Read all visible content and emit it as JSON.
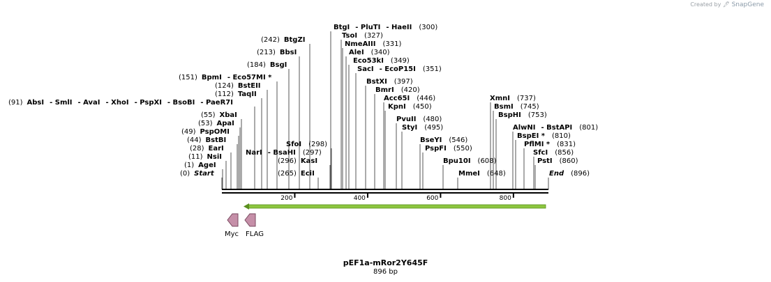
{
  "credit": {
    "prefix": "Created by",
    "brand": "SnapGene"
  },
  "title": "pEF1a-mRor2Y645F",
  "length_label": "896 bp",
  "sequence_length": 896,
  "ruler_ticks": [
    "200",
    "400",
    "600",
    "800"
  ],
  "features": [
    {
      "name": "Myc"
    },
    {
      "name": "FLAG"
    }
  ],
  "colors": {
    "orf_arrow": "#8cc63f",
    "orf_arrow_dark": "#5a8f1f",
    "feature_fill": "#c58fa8",
    "feature_stroke": "#7a4a60",
    "backbone": "#000000",
    "site_line": "#555555"
  },
  "sites": [
    {
      "pos": "(0)",
      "parts": [
        {
          "name": "Start",
          "italic": true
        }
      ],
      "bp": 0
    },
    {
      "pos": "(1)",
      "parts": [
        {
          "name": "AgeI"
        }
      ],
      "bp": 1
    },
    {
      "pos": "(11)",
      "parts": [
        {
          "name": "NsiI"
        }
      ],
      "bp": 11
    },
    {
      "pos": "(28)",
      "parts": [
        {
          "name": "EarI"
        }
      ],
      "bp": 28
    },
    {
      "pos": "(44)",
      "parts": [
        {
          "name": "BstBI"
        }
      ],
      "bp": 44
    },
    {
      "pos": "(49)",
      "parts": [
        {
          "name": "PspOMI"
        }
      ],
      "bp": 49
    },
    {
      "pos": "(53)",
      "parts": [
        {
          "name": "ApaI"
        }
      ],
      "bp": 53
    },
    {
      "pos": "(55)",
      "parts": [
        {
          "name": "XbaI"
        }
      ],
      "bp": 55
    },
    {
      "pos": "(91)",
      "parts": [
        {
          "name": "AbsI"
        },
        {
          "name": "SmlI"
        },
        {
          "name": "AvaI"
        },
        {
          "name": "XhoI"
        },
        {
          "name": "PspXI"
        },
        {
          "name": "BsoBI"
        },
        {
          "name": "PaeR7I"
        }
      ],
      "bp": 91
    },
    {
      "pos": "(112)",
      "parts": [
        {
          "name": "TaqII"
        }
      ],
      "bp": 112
    },
    {
      "pos": "(124)",
      "parts": [
        {
          "name": "BstEII"
        }
      ],
      "bp": 124
    },
    {
      "pos": "(151)",
      "parts": [
        {
          "name": "BpmI"
        },
        {
          "name": "Eco57MI *"
        }
      ],
      "bp": 151
    },
    {
      "pos": "(184)",
      "parts": [
        {
          "name": "BsgI"
        }
      ],
      "bp": 184
    },
    {
      "pos": "(213)",
      "parts": [
        {
          "name": "BbsI"
        }
      ],
      "bp": 213
    },
    {
      "pos": "(242)",
      "parts": [
        {
          "name": "BtgZI"
        }
      ],
      "bp": 242
    },
    {
      "pos": "(265)",
      "parts": [
        {
          "name": "EciI"
        }
      ],
      "bp": 265
    },
    {
      "pos": "(296)",
      "parts": [
        {
          "name": "KasI"
        }
      ],
      "bp": 296
    },
    {
      "pos": "(297)",
      "parts": [
        {
          "name": "NarI"
        },
        {
          "name": "BsaHI"
        }
      ],
      "bp": 297
    },
    {
      "pos": "(298)",
      "parts": [
        {
          "name": "SfoI"
        }
      ],
      "bp": 298
    },
    {
      "pos": "(300)",
      "parts": [
        {
          "name": "BtgI"
        },
        {
          "name": "PluTI"
        },
        {
          "name": "HaeII"
        }
      ],
      "bp": 300
    },
    {
      "pos": "(327)",
      "parts": [
        {
          "name": "TsoI"
        }
      ],
      "bp": 327
    },
    {
      "pos": "(331)",
      "parts": [
        {
          "name": "NmeAIII"
        }
      ],
      "bp": 331
    },
    {
      "pos": "(340)",
      "parts": [
        {
          "name": "AleI"
        }
      ],
      "bp": 340
    },
    {
      "pos": "(349)",
      "parts": [
        {
          "name": "Eco53kI"
        }
      ],
      "bp": 349
    },
    {
      "pos": "(351)",
      "parts": [
        {
          "name": "SacI"
        },
        {
          "name": "EcoP15I"
        }
      ],
      "bp": 351
    },
    {
      "pos": "(397)",
      "parts": [
        {
          "name": "BstXI"
        }
      ],
      "bp": 397
    },
    {
      "pos": "(420)",
      "parts": [
        {
          "name": "BmrI"
        }
      ],
      "bp": 420
    },
    {
      "pos": "(446)",
      "parts": [
        {
          "name": "Acc65I"
        }
      ],
      "bp": 446
    },
    {
      "pos": "(450)",
      "parts": [
        {
          "name": "KpnI"
        }
      ],
      "bp": 450
    },
    {
      "pos": "(480)",
      "parts": [
        {
          "name": "PvuII"
        }
      ],
      "bp": 480
    },
    {
      "pos": "(495)",
      "parts": [
        {
          "name": "StyI"
        }
      ],
      "bp": 495
    },
    {
      "pos": "(546)",
      "parts": [
        {
          "name": "BseYI"
        }
      ],
      "bp": 546
    },
    {
      "pos": "(550)",
      "parts": [
        {
          "name": "PspFI"
        }
      ],
      "bp": 550
    },
    {
      "pos": "(608)",
      "parts": [
        {
          "name": "Bpu10I"
        }
      ],
      "bp": 608
    },
    {
      "pos": "(648)",
      "parts": [
        {
          "name": "MmeI"
        }
      ],
      "bp": 648
    },
    {
      "pos": "(737)",
      "parts": [
        {
          "name": "XmnI"
        }
      ],
      "bp": 737
    },
    {
      "pos": "(745)",
      "parts": [
        {
          "name": "BsmI"
        }
      ],
      "bp": 745
    },
    {
      "pos": "(753)",
      "parts": [
        {
          "name": "BspHI"
        }
      ],
      "bp": 753
    },
    {
      "pos": "(801)",
      "parts": [
        {
          "name": "AlwNI"
        },
        {
          "name": "BstAPI"
        }
      ],
      "bp": 801
    },
    {
      "pos": "(810)",
      "parts": [
        {
          "name": "BspEI *"
        }
      ],
      "bp": 810
    },
    {
      "pos": "(831)",
      "parts": [
        {
          "name": "PflMI *"
        }
      ],
      "bp": 831
    },
    {
      "pos": "(856)",
      "parts": [
        {
          "name": "SfcI"
        }
      ],
      "bp": 856
    },
    {
      "pos": "(860)",
      "parts": [
        {
          "name": "PstI"
        }
      ],
      "bp": 860
    },
    {
      "pos": "(896)",
      "parts": [
        {
          "name": "End",
          "italic": true
        }
      ],
      "bp": 896
    }
  ]
}
